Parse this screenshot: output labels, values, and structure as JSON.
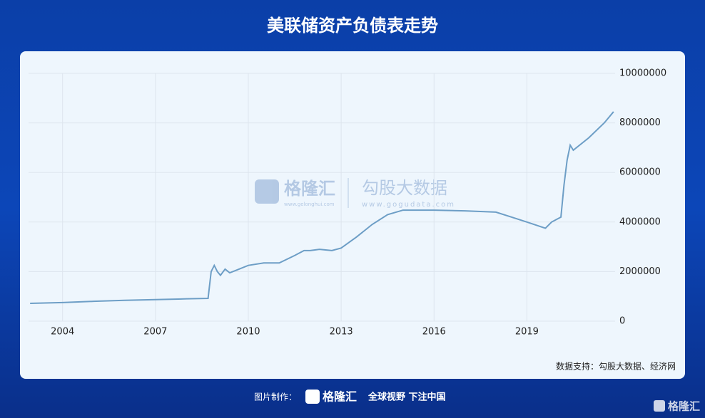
{
  "chart_data": {
    "type": "line",
    "title": "美联储资产负债表走势",
    "x": [
      2002.95,
      2004,
      2005,
      2006,
      2007,
      2008,
      2008.7,
      2008.8,
      2008.9,
      2009.0,
      2009.1,
      2009.25,
      2009.4,
      2009.6,
      2010,
      2010.5,
      2011,
      2011.5,
      2011.8,
      2012,
      2012.3,
      2012.7,
      2013,
      2013.5,
      2014,
      2014.5,
      2015,
      2016,
      2017,
      2018,
      2018.5,
      2019,
      2019.6,
      2019.8,
      2020.1,
      2020.2,
      2020.3,
      2020.4,
      2020.5,
      2021,
      2021.5,
      2021.8
    ],
    "series": [
      {
        "color": "#6d9ec6",
        "values": [
          720000,
          750000,
          800000,
          840000,
          870000,
          900000,
          920000,
          2000000,
          2250000,
          2000000,
          1850000,
          2100000,
          1950000,
          2050000,
          2250000,
          2350000,
          2350000,
          2650000,
          2850000,
          2850000,
          2900000,
          2850000,
          2950000,
          3400000,
          3900000,
          4300000,
          4480000,
          4480000,
          4450000,
          4400000,
          4200000,
          4000000,
          3750000,
          4000000,
          4200000,
          5500000,
          6500000,
          7100000,
          6900000,
          7400000,
          8000000,
          8450000
        ]
      }
    ],
    "xlim": [
      2002.9,
      2021.85
    ],
    "xticks": [
      2004,
      2007,
      2010,
      2013,
      2016,
      2019
    ],
    "ylim": [
      0,
      10000000
    ],
    "yticks": [
      0,
      2000000,
      4000000,
      6000000,
      8000000,
      10000000
    ],
    "grid": true,
    "source": "数据支持：勾股大数据、经济网"
  },
  "watermark": {
    "brand": "格隆汇",
    "brand_url": "www.gelonghui.com",
    "product": "勾股大数据",
    "product_url": "www.gogudata.com"
  },
  "footer": {
    "made_by": "图片制作：",
    "brand": "格隆汇",
    "slogan": "全球视野 下注中国",
    "corner": "格隆汇"
  }
}
